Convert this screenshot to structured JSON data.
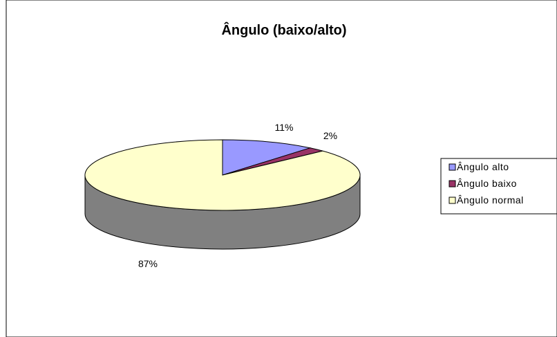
{
  "chart_data": {
    "type": "pie",
    "title": "Ângulo (baixo/alto)",
    "slices": [
      {
        "label": "Ângulo alto",
        "value": 11,
        "value_label": "11%",
        "color": "#9999ff"
      },
      {
        "label": "Ângulo baixo",
        "value": 2,
        "value_label": "2%",
        "color": "#993366"
      },
      {
        "label": "Ângulo normal",
        "value": 87,
        "value_label": "87%",
        "color": "#ffffcc"
      }
    ],
    "style": "3d",
    "side_color": "#808080",
    "legend_position": "right"
  }
}
